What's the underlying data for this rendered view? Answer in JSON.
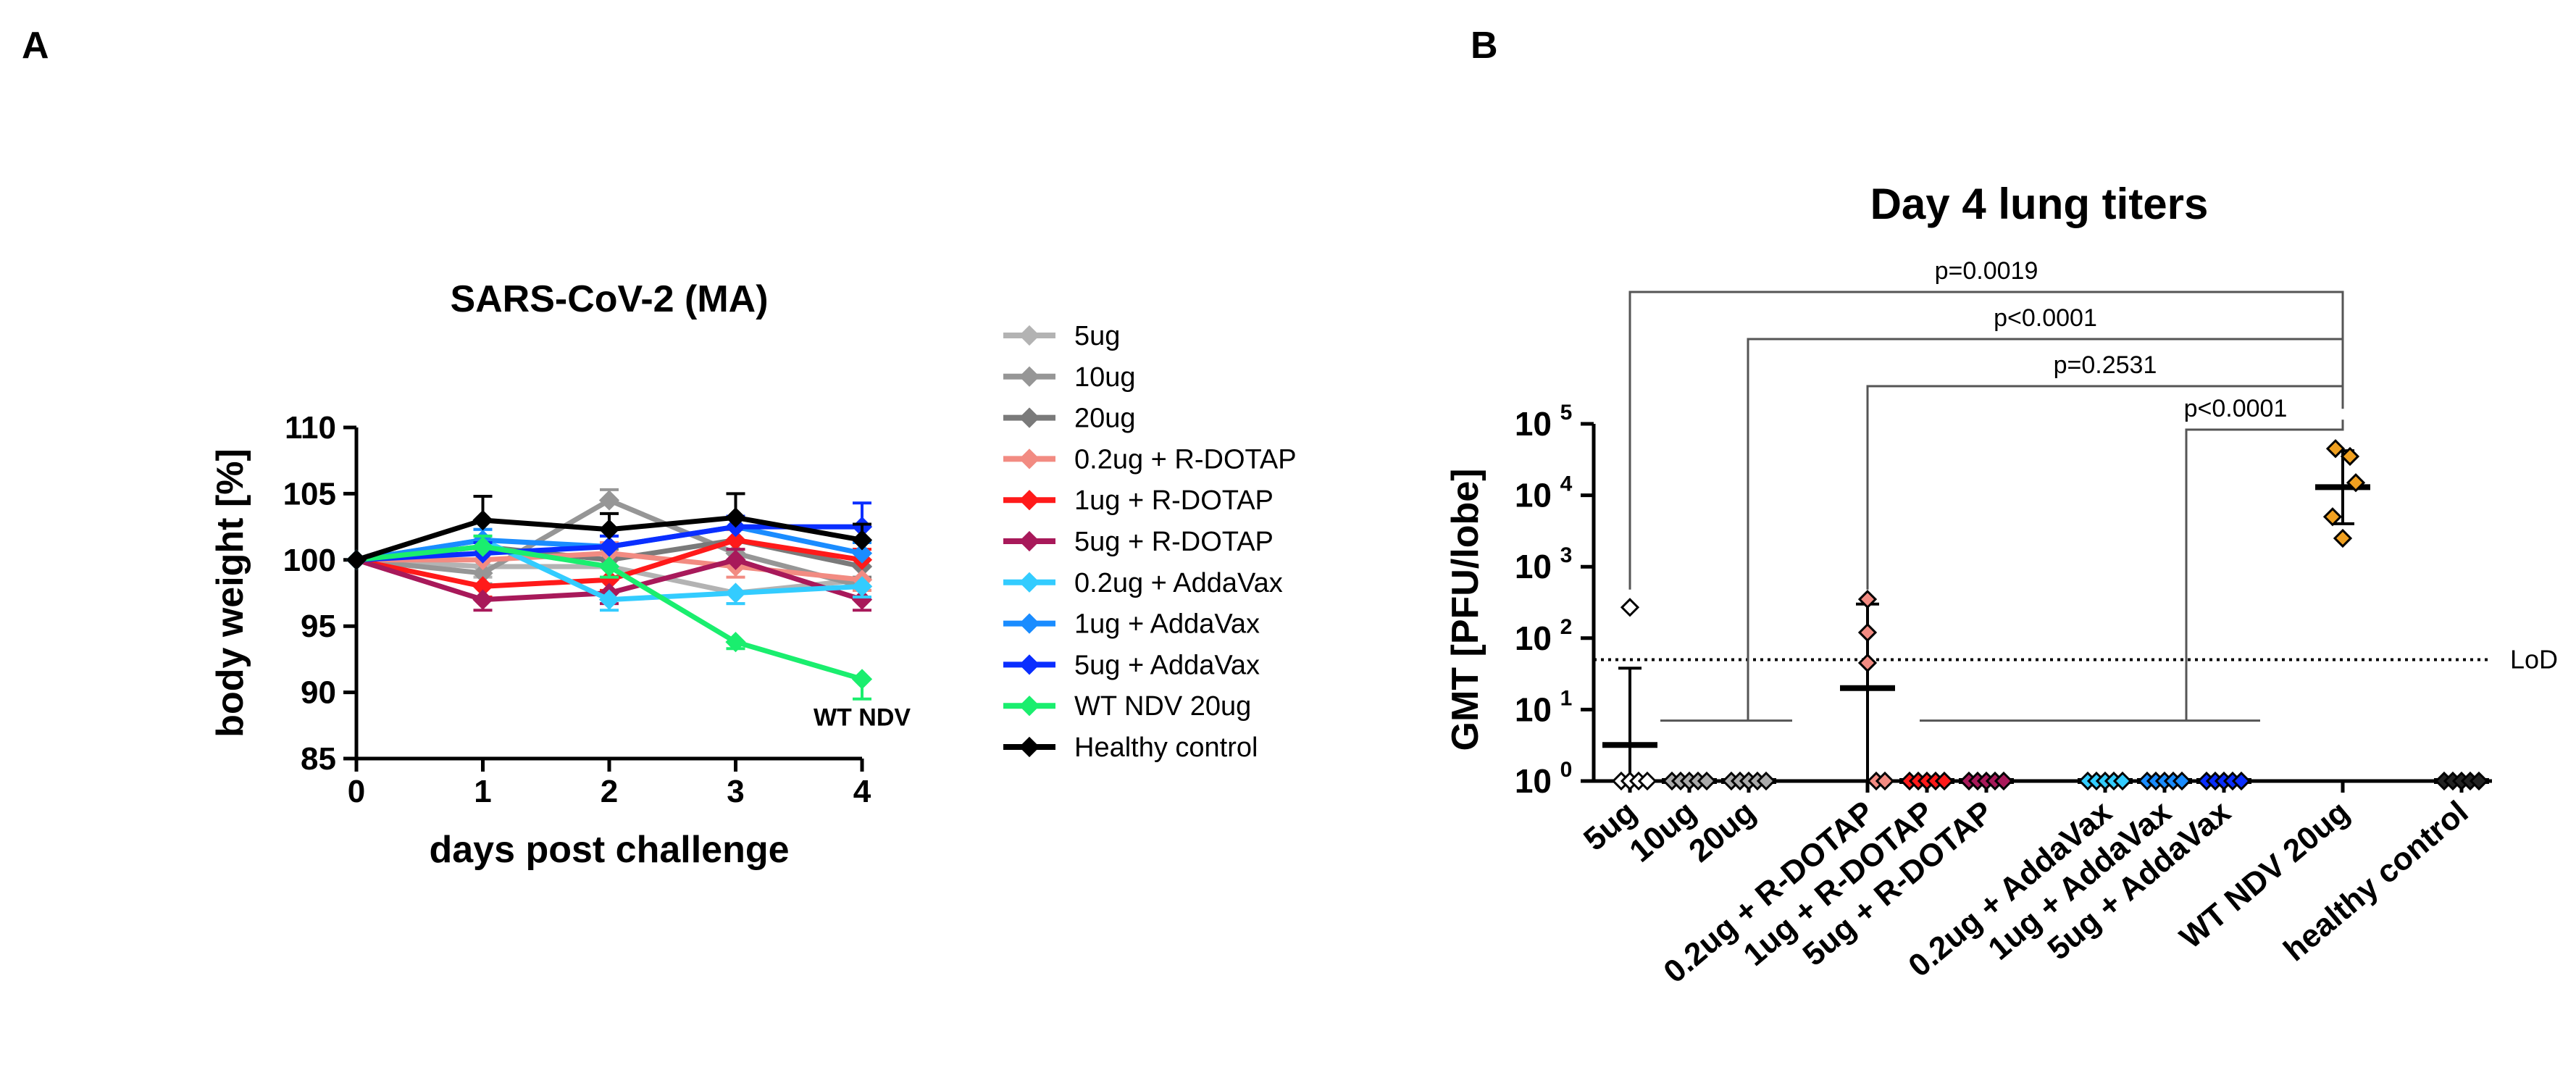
{
  "panels": {
    "a_label": "A",
    "b_label": "B"
  },
  "chart_data": [
    {
      "type": "line",
      "panel": "A",
      "title": "SARS-CoV-2 (MA)",
      "xlabel": "days post challenge",
      "ylabel": "body weight [%]",
      "xlim": [
        0,
        4
      ],
      "ylim": [
        85,
        110
      ],
      "x_ticks": [
        "0",
        "1",
        "2",
        "3",
        "4"
      ],
      "y_ticks": [
        "85",
        "90",
        "95",
        "100",
        "105",
        "110"
      ],
      "x": [
        0,
        1,
        2,
        3,
        4
      ],
      "annotation": "WT NDV",
      "legend_position": "right",
      "series": [
        {
          "name": "5ug",
          "color": "#b3b3b3",
          "values": [
            100,
            99.5,
            99.5,
            97.5,
            98.5
          ],
          "err": [
            0,
            0.8,
            0.8,
            0.8,
            0.8
          ]
        },
        {
          "name": "10ug",
          "color": "#969696",
          "values": [
            100,
            99,
            104.5,
            100.5,
            98
          ],
          "err": [
            0,
            0.8,
            0.8,
            0.8,
            0.8
          ]
        },
        {
          "name": "20ug",
          "color": "#7a7a7a",
          "values": [
            100,
            101,
            100,
            101.5,
            99.5
          ],
          "err": [
            0,
            0.8,
            0.8,
            0.8,
            0.8
          ]
        },
        {
          "name": "0.2ug + R-DOTAP",
          "color": "#f28b82",
          "values": [
            100,
            100,
            100.5,
            99.5,
            98.5
          ],
          "err": [
            0,
            0.8,
            0.8,
            0.8,
            0.8
          ]
        },
        {
          "name": "1ug + R-DOTAP",
          "color": "#ff1a1a",
          "values": [
            100,
            98,
            98.5,
            101.5,
            100
          ],
          "err": [
            0,
            0.8,
            0.8,
            0.8,
            0.8
          ]
        },
        {
          "name": "5ug + R-DOTAP",
          "color": "#a8195a",
          "values": [
            100,
            97,
            97.5,
            100,
            97
          ],
          "err": [
            0,
            0.8,
            0.8,
            0.8,
            0.8
          ]
        },
        {
          "name": "0.2ug + AddaVax",
          "color": "#33ccff",
          "values": [
            100,
            101.5,
            97,
            97.5,
            98
          ],
          "err": [
            0,
            0.8,
            0.8,
            0.8,
            0.8
          ]
        },
        {
          "name": "1ug + AddaVax",
          "color": "#1a8cff",
          "values": [
            100,
            101.5,
            101,
            102.5,
            100.5
          ],
          "err": [
            0,
            0.8,
            0.8,
            0.8,
            0.8
          ]
        },
        {
          "name": "5ug + AddaVax",
          "color": "#0a2eff",
          "values": [
            100,
            100.5,
            101,
            102.5,
            102.5
          ],
          "err": [
            0,
            0.8,
            0.8,
            0.8,
            1.8
          ]
        },
        {
          "name": "WT NDV 20ug",
          "color": "#1aee6e",
          "values": [
            100,
            101,
            99.5,
            93.8,
            91
          ],
          "err": [
            0,
            0.8,
            0.8,
            0.5,
            1.5
          ]
        },
        {
          "name": "Healthy control",
          "color": "#000000",
          "values": [
            100,
            103,
            102.3,
            103.2,
            101.5
          ],
          "err": [
            0,
            1.8,
            1.2,
            1.8,
            1.2
          ]
        }
      ]
    },
    {
      "type": "scatter",
      "panel": "B",
      "title": "Day 4 lung titers",
      "ylabel": "GMT [PFU/lobe]",
      "yscale": "log",
      "ylim": [
        1,
        100000
      ],
      "y_ticks": [
        "10",
        "10",
        "10",
        "10",
        "10",
        "10"
      ],
      "y_tick_exponents": [
        "0",
        "1",
        "2",
        "3",
        "4",
        "5"
      ],
      "lod_value": 50,
      "lod_label": "LoD",
      "categories": [
        "5ug",
        "10ug",
        "20ug",
        "0.2ug + R-DOTAP",
        "1ug + R-DOTAP",
        "5ug + R-DOTAP",
        "0.2ug + AddaVax",
        "1ug + AddaVax",
        "5ug + AddaVax",
        "WT NDV 20ug",
        "healthy control"
      ],
      "category_slots": [
        0,
        1,
        2,
        4,
        5,
        6,
        8,
        9,
        10,
        12,
        14
      ],
      "marker_colors": [
        "#ffffff",
        "#aaaaaa",
        "#aaaaaa",
        "#f28b82",
        "#ff1a1a",
        "#a8195a",
        "#33ccff",
        "#1a8cff",
        "#0a2eff",
        "#f0a020",
        "#222222"
      ],
      "points": [
        [
          270,
          1,
          1,
          1,
          1
        ],
        [
          1,
          1,
          1,
          1,
          1
        ],
        [
          1,
          1,
          1,
          1,
          1
        ],
        [
          350,
          120,
          45,
          1,
          1
        ],
        [
          1,
          1,
          1,
          1,
          1
        ],
        [
          1,
          1,
          1,
          1,
          1
        ],
        [
          1,
          1,
          1,
          1,
          1
        ],
        [
          1,
          1,
          1,
          1,
          1
        ],
        [
          1,
          1,
          1,
          1,
          1
        ],
        [
          45000,
          35000,
          15000,
          5000,
          2500
        ],
        [
          1,
          1,
          1,
          1,
          1
        ]
      ],
      "gmt": [
        3.2,
        1,
        1,
        20,
        1,
        1,
        1,
        1,
        1,
        13000,
        1
      ],
      "gmt_err_high": [
        38,
        1,
        1,
        300,
        1,
        1,
        1,
        1,
        1,
        42000,
        1
      ],
      "gmt_err_low": [
        1,
        1,
        1,
        1,
        1,
        1,
        1,
        1,
        1,
        4000,
        1
      ],
      "comparisons": [
        {
          "label": "p=0.0019"
        },
        {
          "label": "p<0.0001"
        },
        {
          "label": "p=0.2531"
        },
        {
          "label": "p<0.0001"
        }
      ]
    }
  ]
}
